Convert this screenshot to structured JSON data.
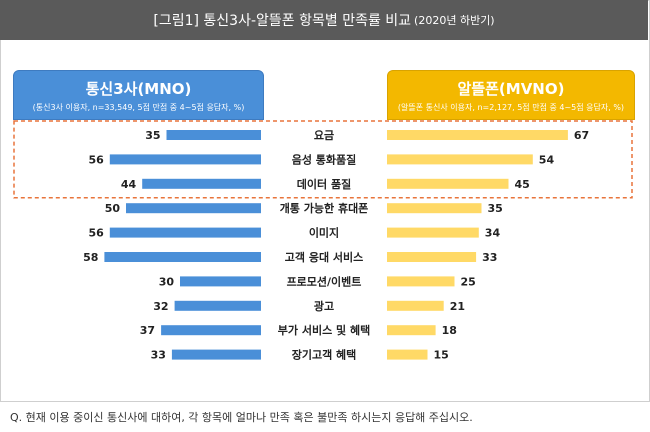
{
  "title": {
    "main": "[그림1] 통신3사-알뜰폰 항목별 만족률 비교",
    "sub": "(2020년 하반기)"
  },
  "left_panel": {
    "name": "통신3사(MNO)",
    "note": "(통신3사 이용자, n=33,549, 5점 만점 중 4~5점 응답자, %)"
  },
  "right_panel": {
    "name": "알뜰폰(MVNO)",
    "note": "(알뜰폰 통신사 이용자, n=2,127, 5점 만점 중 4~5점 응답자, %)"
  },
  "footnote": "Q. 현재 이용 중이신 통신사에 대하여, 각 항목에 얼마나 만족 혹은 불만족 하시는지 응답해 주십시오.",
  "colors": {
    "mno": "#4a8fd8",
    "mvno": "#ffd966",
    "highlight": "#e8743b"
  },
  "chart_data": {
    "type": "bar",
    "orientation": "horizontal-back-to-back",
    "categories": [
      "요금",
      "음성 통화품질",
      "데이터 품질",
      "개통 가능한 휴대폰",
      "이미지",
      "고객 응대 서비스",
      "프로모션/이벤트",
      "광고",
      "부가 서비스 및 혜택",
      "장기고객 혜택"
    ],
    "series": [
      {
        "name": "통신3사(MNO)",
        "values": [
          35,
          56,
          44,
          50,
          56,
          58,
          30,
          32,
          37,
          33
        ]
      },
      {
        "name": "알뜰폰(MVNO)",
        "values": [
          67,
          54,
          45,
          35,
          34,
          33,
          25,
          21,
          18,
          15
        ]
      }
    ],
    "highlighted_categories": [
      "요금",
      "음성 통화품질",
      "데이터 품질"
    ]
  }
}
